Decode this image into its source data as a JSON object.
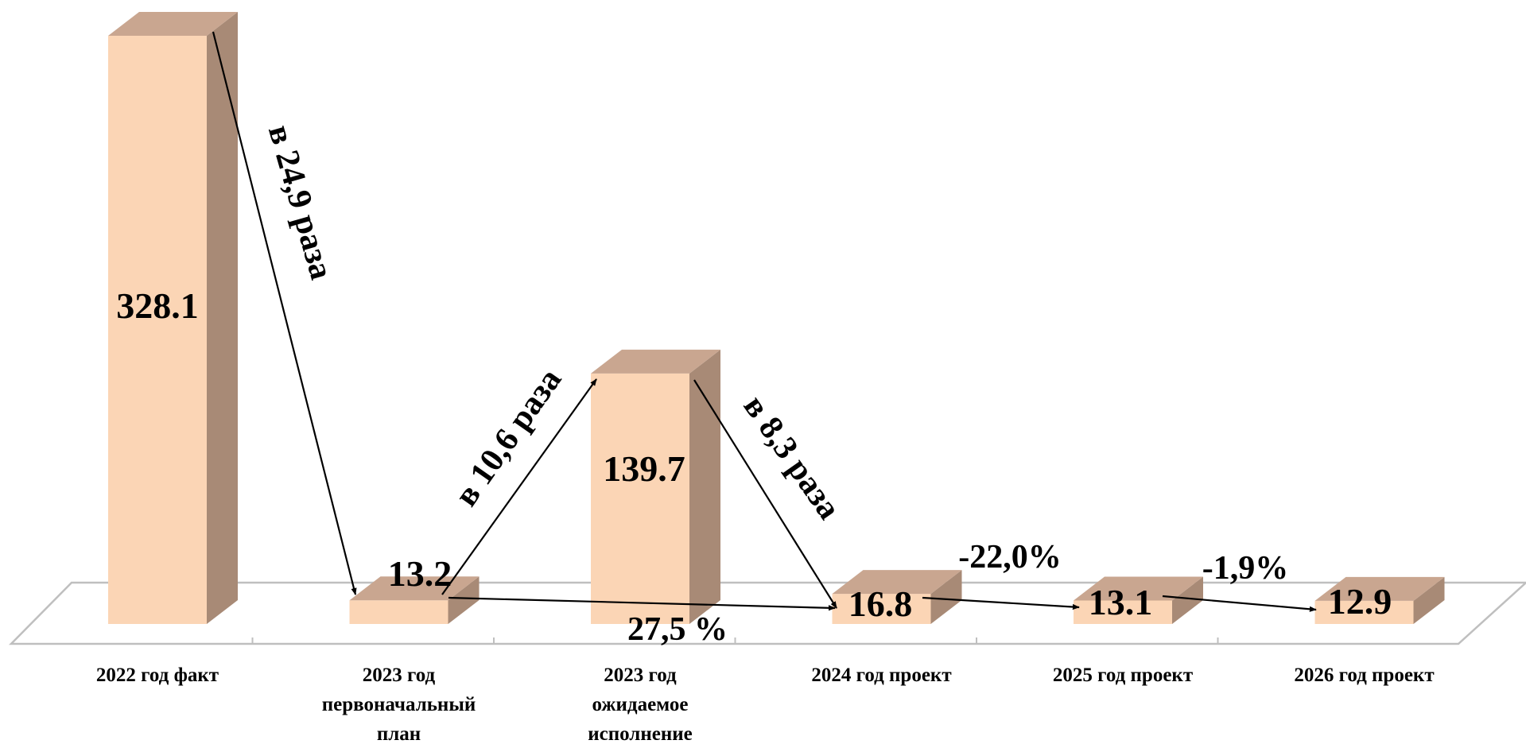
{
  "chart_data": {
    "type": "bar",
    "categories": [
      [
        "2022 год факт"
      ],
      [
        "2023 год",
        "первоначальный",
        "план"
      ],
      [
        "2023 год",
        "ожидаемое",
        "исполнение"
      ],
      [
        "2024 год проект"
      ],
      [
        "2025 год проект"
      ],
      [
        "2026 год проект"
      ]
    ],
    "values": [
      328.1,
      13.2,
      139.7,
      16.8,
      13.1,
      12.9
    ],
    "value_labels": [
      "328.1",
      "13.2",
      "139.7",
      "16.8",
      "13.1",
      "12.9"
    ],
    "ylim": [
      0,
      328.1
    ],
    "grid": false,
    "legend": "none",
    "style": "3d-columns",
    "colors": {
      "bar_front": "#fbd5b5",
      "bar_side": "#a88a76",
      "bar_top": "#c9a690",
      "floor_line": "#bfbfbf"
    },
    "annotations": [
      {
        "text": "в 24,9 раза",
        "from": 0,
        "to": 1
      },
      {
        "text": "в 10,6 раза",
        "from": 1,
        "to": 2
      },
      {
        "text": "в 8,3 раза",
        "from": 2,
        "to": 3
      },
      {
        "text": "27,5 %",
        "from": 1,
        "to": 3
      },
      {
        "text": "-22,0%",
        "from": 3,
        "to": 4
      },
      {
        "text": "-1,9%",
        "from": 4,
        "to": 5
      }
    ]
  }
}
